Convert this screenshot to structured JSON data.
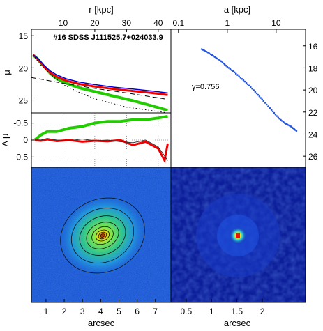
{
  "chart_data": [
    {
      "panel": "surface-brightness-profile",
      "type": "line",
      "title": "#16 SDSS J111525.7+024033.9",
      "xlabel_top": "r [kpc]",
      "ylabel": "μ",
      "xticks_top": [
        "10",
        "20",
        "30",
        "40"
      ],
      "yticks": [
        "15",
        "20",
        "25"
      ],
      "ylim": [
        27,
        14
      ],
      "xlim_kpc": [
        0,
        44
      ],
      "grid": false,
      "series": [
        {
          "color": "#22cc00",
          "x": [
            0.5,
            2,
            4,
            6,
            8,
            11,
            15,
            20,
            26,
            32,
            38,
            43
          ],
          "y": [
            18.0,
            18.6,
            19.8,
            20.9,
            21.7,
            22.4,
            23.1,
            23.7,
            24.4,
            25.1,
            25.9,
            26.6
          ]
        },
        {
          "color": "#ee0000",
          "x": [
            0.5,
            2,
            4,
            6,
            8,
            11,
            15,
            20,
            26,
            32,
            38,
            43
          ],
          "y": [
            18.0,
            18.6,
            19.8,
            20.8,
            21.4,
            22.0,
            22.5,
            22.9,
            23.3,
            23.6,
            23.9,
            24.2
          ]
        },
        {
          "color": "#0000cc",
          "x": [
            0.5,
            2,
            4,
            6,
            8,
            11,
            15,
            20,
            26,
            32,
            38,
            43
          ],
          "y": [
            18.0,
            18.5,
            19.6,
            20.5,
            21.1,
            21.7,
            22.2,
            22.6,
            23.0,
            23.3,
            23.6,
            23.9
          ]
        },
        {
          "color": "#000000",
          "style": "dashed",
          "x": [
            0,
            10,
            20,
            30,
            43
          ],
          "y": [
            21.5,
            22.4,
            23.2,
            23.9,
            24.9
          ]
        },
        {
          "color": "#000000",
          "style": "dotted",
          "x": [
            0.5,
            3,
            6,
            10,
            15,
            20,
            30,
            43
          ],
          "y": [
            18.0,
            19.6,
            21.0,
            22.6,
            23.8,
            24.8,
            26.1,
            27.0
          ]
        }
      ]
    },
    {
      "panel": "residuals",
      "type": "line",
      "ylabel": "Δ μ",
      "yticks": [
        "-0.5",
        "0",
        "0.5"
      ],
      "ylim": [
        0.8,
        -0.8
      ],
      "grid": true,
      "series": [
        {
          "color": "#22cc00",
          "x": [
            1,
            3,
            5,
            8,
            12,
            16,
            20,
            24,
            28,
            32,
            36,
            40,
            43
          ],
          "y": [
            0.0,
            -0.15,
            -0.25,
            -0.25,
            -0.35,
            -0.4,
            -0.5,
            -0.55,
            -0.55,
            -0.6,
            -0.6,
            -0.65,
            -0.7
          ]
        },
        {
          "color": "#ee0000",
          "x": [
            1,
            3,
            5,
            8,
            12,
            16,
            20,
            24,
            28,
            32,
            36,
            40,
            42,
            43
          ],
          "y": [
            0.0,
            0.02,
            -0.02,
            0.03,
            0.0,
            0.05,
            0.02,
            0.04,
            0.0,
            0.15,
            0.05,
            0.25,
            0.6,
            0.1
          ]
        },
        {
          "color": "#333333",
          "x": [
            1,
            3,
            5,
            8,
            12,
            16,
            20,
            24,
            28,
            32,
            36,
            40,
            43
          ],
          "y": [
            0.0,
            0.0,
            -0.05,
            0.0,
            0.02,
            -0.03,
            0.02,
            0.0,
            0.05,
            0.08,
            0.0,
            0.2,
            0.6
          ]
        }
      ]
    },
    {
      "panel": "isophote-profile",
      "type": "scatter",
      "xlabel_top": "a [kpc]",
      "xticks_top": [
        "0.1",
        "1",
        "10"
      ],
      "yticks_right": [
        "16",
        "18",
        "20",
        "22",
        "24",
        "26"
      ],
      "ylim": [
        27,
        14.5
      ],
      "xscale": "log",
      "annotation": "γ=0.756",
      "color": "#2255dd",
      "series": [
        {
          "x": [
            0.3,
            0.4,
            0.55,
            0.75,
            1.0,
            1.4,
            2.0,
            2.8,
            4.0,
            5.5,
            8.0,
            11,
            15,
            20,
            26
          ],
          "y": [
            16.3,
            16.6,
            17.0,
            17.4,
            17.9,
            18.4,
            19.0,
            19.6,
            20.3,
            21.0,
            21.8,
            22.5,
            23.0,
            23.3,
            23.7
          ]
        }
      ]
    },
    {
      "panel": "galaxy-image",
      "type": "image",
      "xlabel": "arcsec",
      "xticks": [
        "1",
        "2",
        "3",
        "4",
        "5",
        "6",
        "7"
      ]
    },
    {
      "panel": "psf-image",
      "type": "image",
      "xlabel": "arcsec",
      "xticks": [
        "0.5",
        "1",
        "1.5",
        "2"
      ]
    }
  ]
}
